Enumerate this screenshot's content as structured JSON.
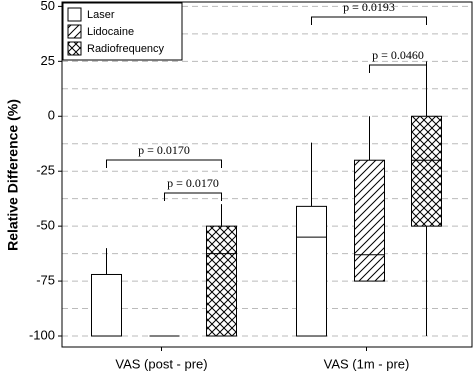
{
  "chart_data": {
    "type": "box",
    "y_label": "Relative Difference (%)",
    "categories": [
      "VAS (post - pre)",
      "VAS (1m - pre)"
    ],
    "ylim": [
      -105,
      52
    ],
    "yticks": [
      -100,
      -75,
      -50,
      -25,
      0,
      25,
      50
    ],
    "y_minor_ticks": [
      -87.5,
      -62.5,
      -37.5,
      -12.5,
      12.5,
      37.5
    ],
    "grid": true,
    "legend": "top-left",
    "series": [
      {
        "name": "Laser",
        "color": "#000000",
        "pattern": "none",
        "values": [
          {
            "min": -100,
            "q1": -100,
            "median": -100,
            "q3": -72,
            "max": -60
          },
          {
            "min": -100,
            "q1": -100,
            "median": -55,
            "q3": -41,
            "max": -12
          }
        ]
      },
      {
        "name": "Lidocaine",
        "color": "#000000",
        "pattern": "hatch",
        "values": [
          {
            "min": -100,
            "q1": -100,
            "median": -100,
            "q3": -100,
            "max": -100
          },
          {
            "min": -75,
            "q1": -75,
            "median": -63,
            "q3": -20,
            "max": 0
          }
        ]
      },
      {
        "name": "Radiofrequency",
        "color": "#000000",
        "pattern": "crosshatch",
        "values": [
          {
            "min": -100,
            "q1": -100,
            "median": -62.5,
            "q3": -50,
            "max": -40
          },
          {
            "min": -100,
            "q1": -50,
            "median": -20,
            "q3": 0,
            "max": 25
          }
        ]
      }
    ],
    "annotations": [
      "p = 0.0170",
      "p = 0.0170",
      "p = 0.0193",
      "p = 0.0460"
    ]
  }
}
